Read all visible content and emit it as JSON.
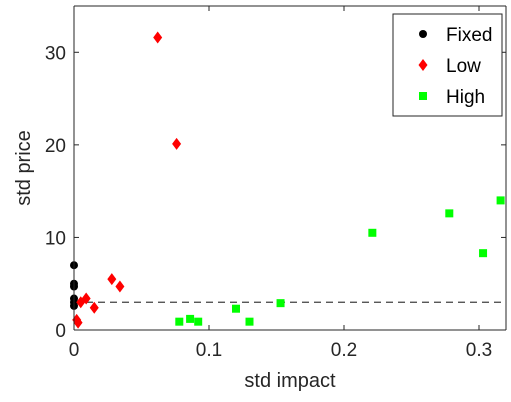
{
  "chart_data": {
    "type": "scatter",
    "title": "",
    "xlabel": "std impact",
    "ylabel": "std price",
    "xlim": [
      0,
      0.32
    ],
    "ylim": [
      0,
      35
    ],
    "xticks": [
      0,
      0.1,
      0.2,
      0.3
    ],
    "xtick_labels": [
      "0",
      "0.1",
      "0.2",
      "0.3"
    ],
    "yticks": [
      0,
      10,
      20,
      30
    ],
    "ytick_labels": [
      "0",
      "10",
      "20",
      "30"
    ],
    "grid": false,
    "legend_position": "top-right",
    "reference_line": {
      "y": 3,
      "style": "dashed",
      "color": "#404040"
    },
    "series": [
      {
        "name": "Fixed",
        "marker": "circle",
        "color": "#000000",
        "points": [
          [
            0,
            7.0
          ],
          [
            0,
            5.0
          ],
          [
            0,
            4.7
          ],
          [
            0,
            3.4
          ],
          [
            0,
            3.0
          ],
          [
            0,
            2.6
          ]
        ]
      },
      {
        "name": "Low",
        "marker": "diamond",
        "color": "#ff0000",
        "points": [
          [
            0.062,
            31.6
          ],
          [
            0.076,
            20.1
          ],
          [
            0.028,
            5.5
          ],
          [
            0.034,
            4.7
          ],
          [
            0.009,
            3.4
          ],
          [
            0.005,
            3.0
          ],
          [
            0.015,
            2.4
          ],
          [
            0.002,
            1.1
          ],
          [
            0.003,
            0.8
          ]
        ]
      },
      {
        "name": "High",
        "marker": "square",
        "color": "#00ff00",
        "points": [
          [
            0.153,
            2.9
          ],
          [
            0.12,
            2.3
          ],
          [
            0.221,
            10.5
          ],
          [
            0.278,
            12.6
          ],
          [
            0.303,
            8.3
          ],
          [
            0.316,
            14.0
          ],
          [
            0.078,
            0.9
          ],
          [
            0.086,
            1.2
          ],
          [
            0.092,
            0.9
          ],
          [
            0.13,
            0.9
          ]
        ]
      }
    ]
  }
}
